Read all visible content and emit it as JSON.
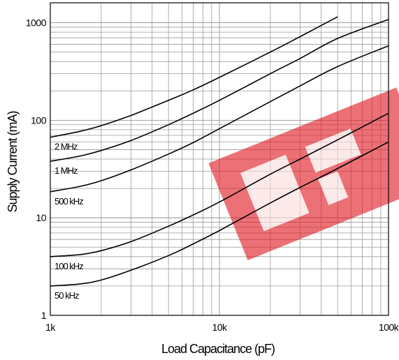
{
  "chart_data": {
    "type": "line",
    "xlabel": "Load Capacitance (pF)",
    "ylabel": "Supply Current (mA)",
    "xscale": "log",
    "yscale": "log",
    "xlim": [
      1000,
      100000
    ],
    "ylim": [
      1,
      1600
    ],
    "grid": true,
    "x_ticks": [
      {
        "value": 1000,
        "label": "1k"
      },
      {
        "value": 10000,
        "label": "10k"
      },
      {
        "value": 100000,
        "label": "100k"
      }
    ],
    "y_ticks": [
      {
        "value": 1,
        "label": "1"
      },
      {
        "value": 10,
        "label": "10"
      },
      {
        "value": 100,
        "label": "100"
      },
      {
        "value": 1000,
        "label": "1000"
      }
    ],
    "series": [
      {
        "name": "2 MHz",
        "label": "2 MHz",
        "x": [
          1000,
          1500,
          2000,
          3000,
          5000,
          7000,
          10000,
          20000,
          30000,
          50000
        ],
        "y": [
          67,
          77,
          88,
          112,
          160,
          205,
          275,
          500,
          720,
          1150
        ]
      },
      {
        "name": "1 MHz",
        "label": "1 MHz",
        "x": [
          1000,
          1500,
          2000,
          3000,
          5000,
          7000,
          10000,
          20000,
          30000,
          50000,
          100000
        ],
        "y": [
          38,
          43,
          49,
          62,
          90,
          118,
          160,
          300,
          430,
          690,
          1080
        ]
      },
      {
        "name": "500 kHz",
        "label": "500 kHz",
        "x": [
          1000,
          1500,
          2000,
          3000,
          5000,
          7000,
          10000,
          20000,
          30000,
          50000,
          100000
        ],
        "y": [
          18.5,
          21,
          24,
          31,
          45,
          59,
          82,
          155,
          225,
          355,
          580
        ]
      },
      {
        "name": "100 kHz",
        "label": "100 kHz",
        "x": [
          1000,
          1500,
          2000,
          3000,
          5000,
          7000,
          10000,
          20000,
          30000,
          50000,
          100000
        ],
        "y": [
          4.0,
          4.2,
          4.6,
          5.7,
          8.2,
          10.7,
          14.5,
          28,
          40,
          63,
          118
        ]
      },
      {
        "name": "50 kHz",
        "label": "50 kHz",
        "x": [
          1000,
          1500,
          2000,
          3000,
          5000,
          7000,
          10000,
          20000,
          30000,
          50000,
          100000
        ],
        "y": [
          2.0,
          2.1,
          2.3,
          2.9,
          4.1,
          5.4,
          7.4,
          14.2,
          20.5,
          32,
          60
        ]
      }
    ]
  }
}
